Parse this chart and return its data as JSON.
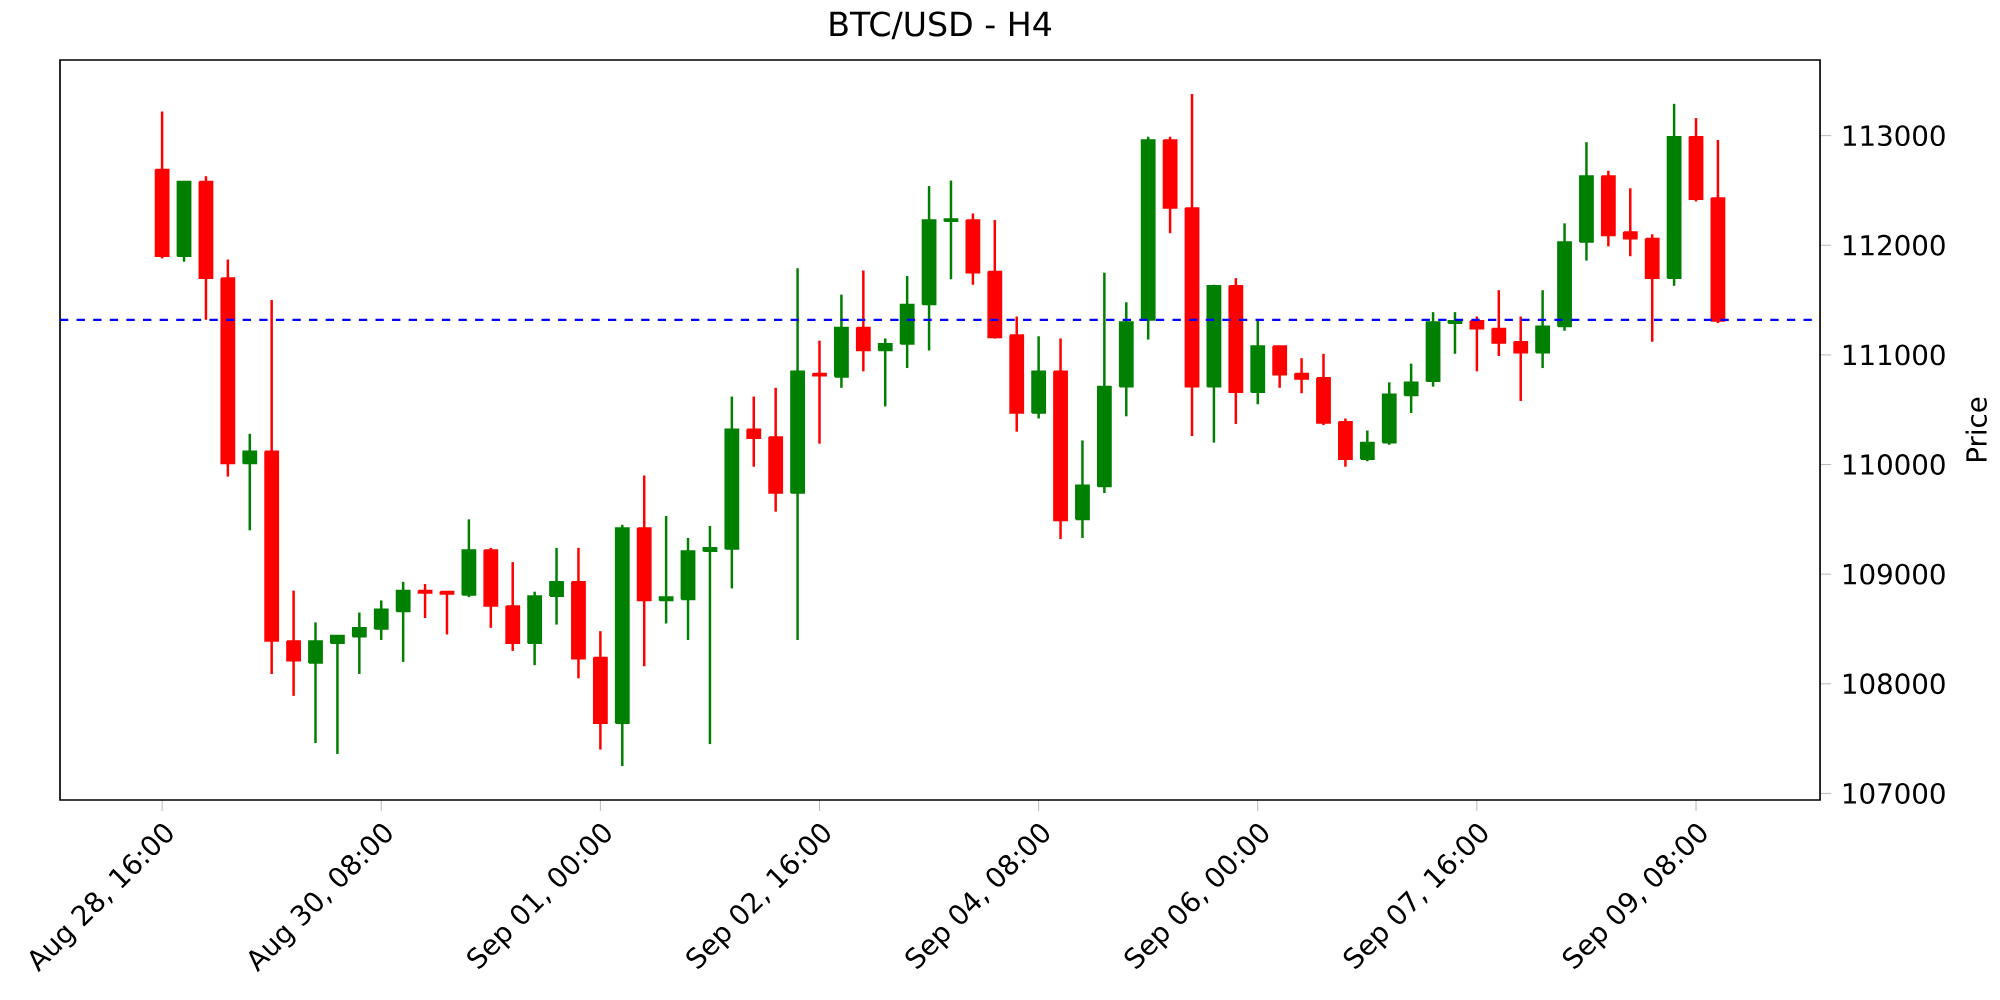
{
  "chart_data": {
    "type": "candlestick",
    "title": "BTC/USD - H4",
    "ylabel": "Price",
    "categories": [
      "Aug 28, 16:00",
      null,
      null,
      null,
      null,
      null,
      null,
      null,
      null,
      null,
      "Aug 30, 08:00",
      null,
      null,
      null,
      null,
      null,
      null,
      null,
      null,
      null,
      "Sep 01, 00:00",
      null,
      null,
      null,
      null,
      null,
      null,
      null,
      null,
      null,
      "Sep 02, 16:00",
      null,
      null,
      null,
      null,
      null,
      null,
      null,
      null,
      null,
      "Sep 04, 08:00",
      null,
      null,
      null,
      null,
      null,
      null,
      null,
      null,
      null,
      "Sep 06, 00:00",
      null,
      null,
      null,
      null,
      null,
      null,
      null,
      null,
      null,
      "Sep 07, 16:00",
      null,
      null,
      null,
      null,
      null,
      null,
      null,
      null,
      null,
      "Sep 09, 08:00",
      null
    ],
    "ohlc": [
      [
        112690,
        113220,
        111880,
        111900
      ],
      [
        111900,
        112580,
        111850,
        112580
      ],
      [
        112580,
        112630,
        111320,
        111700
      ],
      [
        111700,
        111870,
        109890,
        110010
      ],
      [
        110010,
        110280,
        109400,
        110120
      ],
      [
        110120,
        111500,
        108090,
        108390
      ],
      [
        108390,
        108850,
        107890,
        108210
      ],
      [
        108190,
        108560,
        107460,
        108390
      ],
      [
        108370,
        108440,
        107360,
        108440
      ],
      [
        108430,
        108650,
        108090,
        108510
      ],
      [
        108500,
        108760,
        108400,
        108680
      ],
      [
        108660,
        108930,
        108200,
        108850
      ],
      [
        108850,
        108910,
        108600,
        108830
      ],
      [
        108840,
        108840,
        108450,
        108820
      ],
      [
        108810,
        109500,
        108790,
        109220
      ],
      [
        109220,
        109240,
        108510,
        108710
      ],
      [
        108710,
        109110,
        108300,
        108370
      ],
      [
        108370,
        108840,
        108170,
        108800
      ],
      [
        108800,
        109240,
        108540,
        108930
      ],
      [
        108930,
        109240,
        108050,
        108230
      ],
      [
        108240,
        108480,
        107400,
        107640
      ],
      [
        107640,
        109450,
        107250,
        109420
      ],
      [
        109420,
        109900,
        108160,
        108760
      ],
      [
        108760,
        109530,
        108550,
        108790
      ],
      [
        108770,
        109330,
        108400,
        109210
      ],
      [
        109210,
        109440,
        107450,
        109240
      ],
      [
        109230,
        110620,
        108870,
        110320
      ],
      [
        110320,
        110620,
        109980,
        110240
      ],
      [
        110250,
        110700,
        109570,
        109740
      ],
      [
        109740,
        111790,
        108400,
        110850
      ],
      [
        110830,
        111130,
        110190,
        110810
      ],
      [
        110800,
        111550,
        110700,
        111250
      ],
      [
        111250,
        111770,
        110850,
        111040
      ],
      [
        111040,
        111150,
        110530,
        111100
      ],
      [
        111100,
        111720,
        110880,
        111460
      ],
      [
        111460,
        112540,
        111040,
        112230
      ],
      [
        112220,
        112590,
        111690,
        112240
      ],
      [
        112230,
        112290,
        111640,
        111750
      ],
      [
        111760,
        112230,
        111150,
        111160
      ],
      [
        111180,
        111350,
        110300,
        110470
      ],
      [
        110470,
        111170,
        110420,
        110850
      ],
      [
        110850,
        111150,
        109320,
        109490
      ],
      [
        109500,
        110220,
        109330,
        109810
      ],
      [
        109800,
        111750,
        109740,
        110710
      ],
      [
        110710,
        111480,
        110440,
        111300
      ],
      [
        111320,
        112990,
        111140,
        112960
      ],
      [
        112960,
        112990,
        112110,
        112340
      ],
      [
        112340,
        113380,
        110260,
        110710
      ],
      [
        110710,
        111640,
        110200,
        111630
      ],
      [
        111630,
        111700,
        110370,
        110660
      ],
      [
        110660,
        111320,
        110550,
        111080
      ],
      [
        111080,
        111080,
        110700,
        110820
      ],
      [
        110830,
        110970,
        110650,
        110780
      ],
      [
        110790,
        111010,
        110360,
        110380
      ],
      [
        110390,
        110420,
        109980,
        110050
      ],
      [
        110050,
        110310,
        110030,
        110200
      ],
      [
        110200,
        110750,
        110180,
        110640
      ],
      [
        110630,
        110920,
        110470,
        110750
      ],
      [
        110760,
        111390,
        110710,
        111300
      ],
      [
        111290,
        111390,
        111010,
        111310
      ],
      [
        111310,
        111350,
        110850,
        111240
      ],
      [
        111240,
        111590,
        110990,
        111110
      ],
      [
        111120,
        111350,
        110580,
        111020
      ],
      [
        111020,
        111590,
        110880,
        111260
      ],
      [
        111260,
        112200,
        111220,
        112030
      ],
      [
        112030,
        112940,
        111860,
        112630
      ],
      [
        112630,
        112680,
        111990,
        112090
      ],
      [
        112120,
        112520,
        111900,
        112060
      ],
      [
        112060,
        112100,
        111120,
        111700
      ],
      [
        111700,
        113290,
        111630,
        112990
      ],
      [
        112990,
        113160,
        112400,
        112420
      ],
      [
        112430,
        112960,
        111290,
        111310
      ]
    ],
    "colors": [
      "#ff0000",
      "#008000",
      "#ff0000",
      "#ff0000",
      "#008000",
      "#ff0000",
      "#ff0000",
      "#008000",
      "#008000",
      "#008000",
      "#008000",
      "#008000",
      "#ff0000",
      "#ff0000",
      "#008000",
      "#ff0000",
      "#ff0000",
      "#008000",
      "#008000",
      "#ff0000",
      "#ff0000",
      "#008000",
      "#ff0000",
      "#008000",
      "#008000",
      "#008000",
      "#008000",
      "#ff0000",
      "#ff0000",
      "#008000",
      "#ff0000",
      "#008000",
      "#ff0000",
      "#008000",
      "#008000",
      "#008000",
      "#008000",
      "#ff0000",
      "#ff0000",
      "#ff0000",
      "#008000",
      "#ff0000",
      "#008000",
      "#008000",
      "#008000",
      "#008000",
      "#ff0000",
      "#ff0000",
      "#008000",
      "#ff0000",
      "#008000",
      "#ff0000",
      "#ff0000",
      "#ff0000",
      "#ff0000",
      "#008000",
      "#008000",
      "#008000",
      "#008000",
      "#008000",
      "#ff0000",
      "#ff0000",
      "#ff0000",
      "#008000",
      "#008000",
      "#008000",
      "#ff0000",
      "#ff0000",
      "#ff0000",
      "#008000",
      "#ff0000",
      "#ff0000"
    ],
    "ylim": [
      106940,
      113690
    ],
    "yticks": [
      107000,
      108000,
      109000,
      110000,
      111000,
      112000,
      113000
    ],
    "ref_lines": [
      {
        "axis": "y",
        "value": 111320,
        "color": "#0000ff",
        "line_style": "dashed"
      }
    ],
    "grid": false
  }
}
